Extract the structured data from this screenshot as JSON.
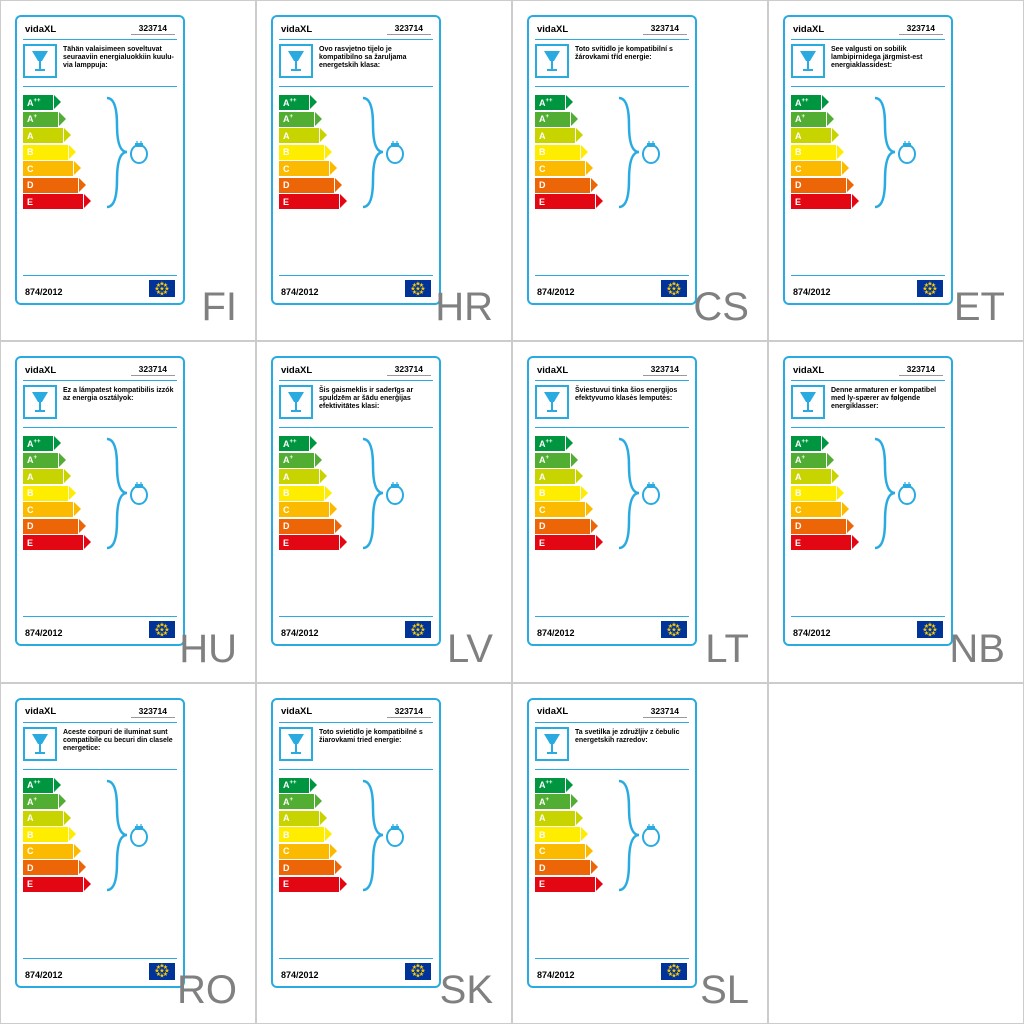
{
  "brand": "vidaXL",
  "model": "323714",
  "regulation": "874/2012",
  "classes": [
    "A++",
    "A+",
    "A",
    "B",
    "C",
    "D",
    "E"
  ],
  "class_colors": [
    "#009640",
    "#52ae32",
    "#c8d400",
    "#ffed00",
    "#fbba00",
    "#ec6608",
    "#e30613"
  ],
  "class_widths": [
    30,
    35,
    40,
    45,
    50,
    55,
    60
  ],
  "accent_color": "#29abe2",
  "lang_color": "#808080",
  "cells": [
    {
      "lang": "FI",
      "text": "Tähän valaisimeen soveltuvat seuraaviin energialuokkiin kuulu-via lamppuja:"
    },
    {
      "lang": "HR",
      "text": "Ovo rasvjetno tijelo je kompatibilno sa žaruljama energetskih klasa:"
    },
    {
      "lang": "CS",
      "text": "Toto svítidlo je kompatibilní s žárovkami tříd energie:"
    },
    {
      "lang": "ET",
      "text": "See valgusti on sobilik lambipirnidega järgmist-est energiaklassidest:"
    },
    {
      "lang": "HU",
      "text": "Ez a lámpatest kompatibilis izzók az energia osztályok:"
    },
    {
      "lang": "LV",
      "text": "Šis gaismeklis ir saderīgs ar spuldzēm ar šādu enerģijas efektivitātes klasi:"
    },
    {
      "lang": "LT",
      "text": "Šviestuvui tinka šios energijos efektyvumo klasės lemputės:"
    },
    {
      "lang": "NB",
      "text": "Denne armaturen er kompatibel med ly-spærer av følgende energiklasser:"
    },
    {
      "lang": "RO",
      "text": "Aceste corpuri de iluminat sunt compatibile cu becuri din clasele energetice:"
    },
    {
      "lang": "SK",
      "text": "Toto svietidlo je kompatibilné s žiarovkami tried energie:"
    },
    {
      "lang": "SL",
      "text": "Ta svetilka je združljiv z čebulic energetskih razredov:"
    },
    {
      "empty": true
    }
  ]
}
